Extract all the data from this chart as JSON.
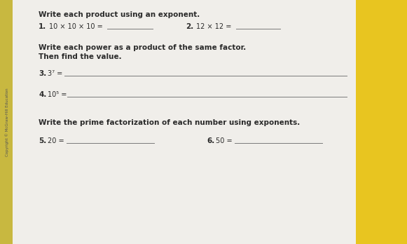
{
  "bg_color": "#d4cfc4",
  "paper_color": "#f0eeea",
  "sidebar_color": "#e8c520",
  "left_strip_color": "#c8b840",
  "title1": "Write each product using an exponent.",
  "q1_label": "1.",
  "q1_text": "10 × 10 × 10 = ",
  "q2_label": "2.",
  "q2_text": "12 × 12 = ",
  "title2_line1": "Write each power as a product of the same factor.",
  "title2_line2": "Then find the value.",
  "q3_label": "3.",
  "q3_text": "3⁷ = ",
  "q4_label": "4.",
  "q4_text": "10⁵ = ",
  "title3": "Write the prime factorization of each number using exponents.",
  "q5_label": "5.",
  "q5_text": "20 = ",
  "q6_label": "6.",
  "q6_text": "50 = ",
  "copyright": "Copyright © McGraw-Hill Education",
  "text_color": "#2a2a2a",
  "line_color": "#7a7a7a",
  "label_size": 7.5,
  "text_size": 7.0,
  "title_size": 7.5
}
